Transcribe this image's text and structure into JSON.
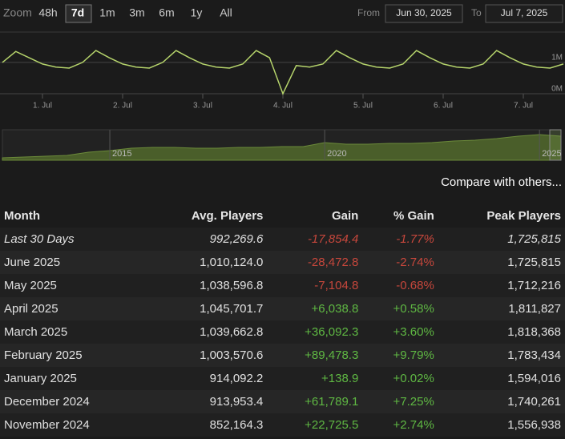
{
  "toolbar": {
    "zoom_label": "Zoom",
    "zoom_options": [
      "48h",
      "7d",
      "1m",
      "3m",
      "6m",
      "1y",
      "All"
    ],
    "selected": 1,
    "from_label": "From",
    "from_value": "Jun 30, 2025",
    "to_label": "To",
    "to_value": "Jul 7, 2025"
  },
  "chart_data": [
    {
      "type": "line",
      "categories": [
        null,
        null,
        null,
        "1. Jul",
        null,
        null,
        null,
        null,
        null,
        "2. Jul",
        null,
        null,
        null,
        null,
        null,
        "3. Jul",
        null,
        null,
        null,
        null,
        null,
        "4. Jul",
        null,
        null,
        null,
        null,
        null,
        "5. Jul",
        null,
        null,
        null,
        null,
        null,
        "6. Jul",
        null,
        null,
        null,
        null,
        null,
        "7. Jul",
        null,
        null,
        null
      ],
      "series": [
        {
          "color": "#b5d36b",
          "values": [
            1.0,
            1.35,
            1.15,
            0.95,
            0.85,
            0.82,
            1.0,
            1.38,
            1.15,
            0.95,
            0.85,
            0.82,
            1.0,
            1.38,
            1.15,
            0.95,
            0.85,
            0.82,
            0.95,
            1.38,
            1.15,
            0,
            0.9,
            0.85,
            0.95,
            1.38,
            1.15,
            0.95,
            0.85,
            0.82,
            0.95,
            1.38,
            1.15,
            0.95,
            0.85,
            0.82,
            0.95,
            1.38,
            1.15,
            0.95,
            0.85,
            0.82,
            0.95
          ]
        }
      ],
      "ylim": [
        0,
        1.97
      ],
      "yticks": [
        {
          "value": 0,
          "label": "0M"
        },
        {
          "value": 1,
          "label": "1M"
        }
      ],
      "grid": true
    },
    {
      "type": "area",
      "categories": [
        null,
        null,
        null,
        null,
        null,
        "2015",
        null,
        null,
        null,
        null,
        null,
        null,
        null,
        null,
        null,
        "2020",
        null,
        null,
        null,
        null,
        null,
        null,
        null,
        null,
        null,
        "2025",
        null
      ],
      "series": [
        {
          "color": "#4a5e2a",
          "values": [
            0.15,
            0.2,
            0.25,
            0.3,
            0.5,
            0.6,
            0.75,
            0.8,
            0.8,
            0.75,
            0.75,
            0.8,
            0.8,
            0.85,
            0.85,
            1.1,
            1.0,
            1.0,
            1.05,
            1.05,
            1.1,
            1.2,
            1.25,
            1.35,
            1.5,
            1.6,
            1.5
          ]
        }
      ],
      "ylim": [
        0,
        1.9
      ]
    }
  ],
  "compare_link": "Compare with others...",
  "table": {
    "headers": [
      "Month",
      "Avg. Players",
      "Gain",
      "% Gain",
      "Peak Players"
    ],
    "rows": [
      [
        "Last 30 Days",
        "992,269.6",
        "-17,854.4",
        "-1.77%",
        "1,725,815"
      ],
      [
        "June 2025",
        "1,010,124.0",
        "-28,472.8",
        "-2.74%",
        "1,725,815"
      ],
      [
        "May 2025",
        "1,038,596.8",
        "-7,104.8",
        "-0.68%",
        "1,712,216"
      ],
      [
        "April 2025",
        "1,045,701.7",
        "+6,038.8",
        "+0.58%",
        "1,811,827"
      ],
      [
        "March 2025",
        "1,039,662.8",
        "+36,092.3",
        "+3.60%",
        "1,818,368"
      ],
      [
        "February 2025",
        "1,003,570.6",
        "+89,478.3",
        "+9.79%",
        "1,783,434"
      ],
      [
        "January 2025",
        "914,092.2",
        "+138.9",
        "+0.02%",
        "1,594,016"
      ],
      [
        "December 2024",
        "913,953.4",
        "+61,789.1",
        "+7.25%",
        "1,740,261"
      ],
      [
        "November 2024",
        "852,164.3",
        "+22,725.5",
        "+2.74%",
        "1,556,938"
      ]
    ]
  }
}
